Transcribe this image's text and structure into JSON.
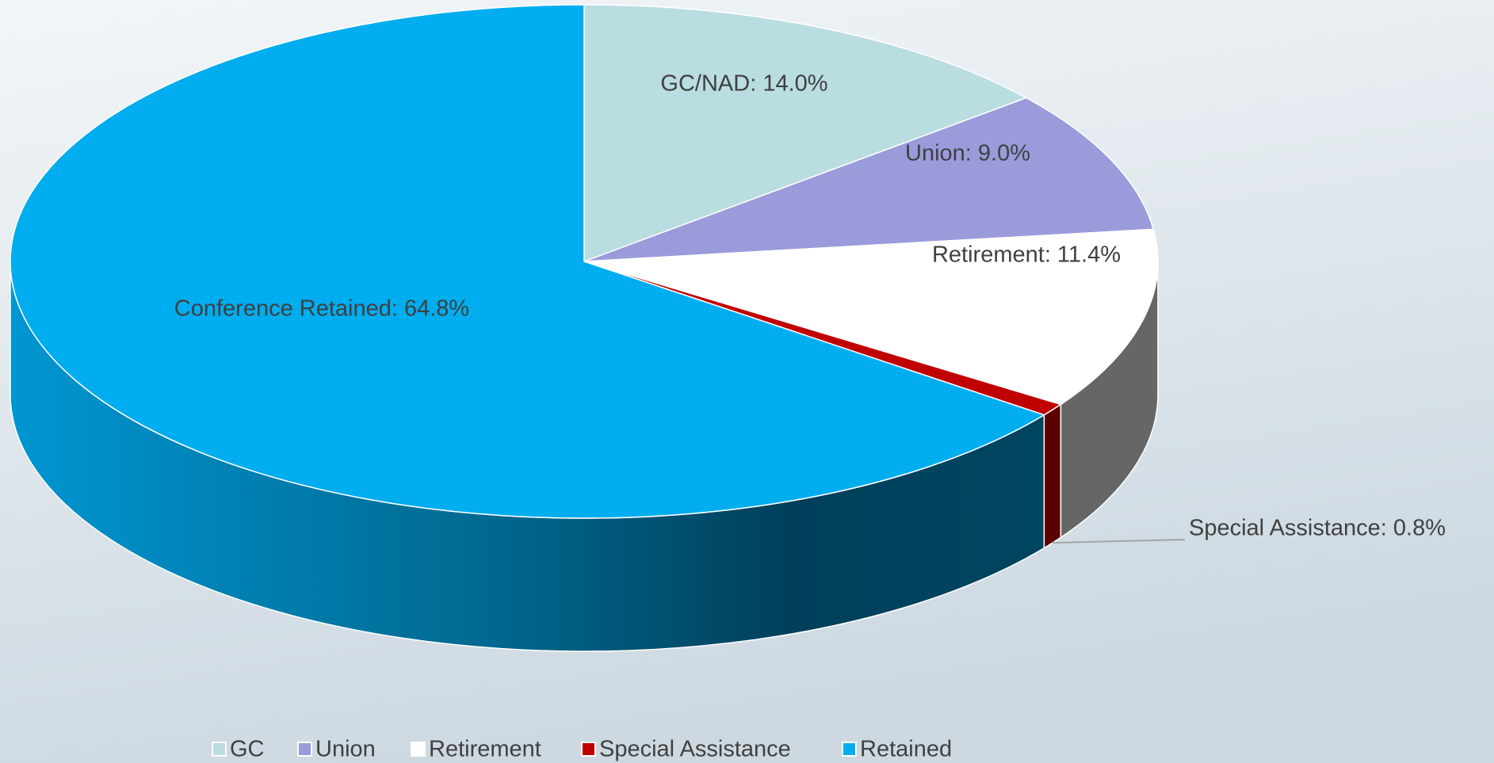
{
  "chart_data": {
    "type": "pie",
    "categories": [
      "GC",
      "Union",
      "Retirement",
      "Special Assistance",
      "Retained"
    ],
    "values": [
      14.0,
      9.0,
      11.4,
      0.8,
      64.8
    ],
    "value_labels": [
      "GC/NAD: 14.0%",
      "Union: 9.0%",
      "Retirement: 11.4%",
      "Special Assistance: 0.8%",
      "Conference Retained: 64.8%"
    ],
    "colors": [
      "#b9dde0",
      "#9b9bdc",
      "#ffffff",
      "#c00000",
      "#00adef"
    ],
    "legend": "bottom"
  }
}
